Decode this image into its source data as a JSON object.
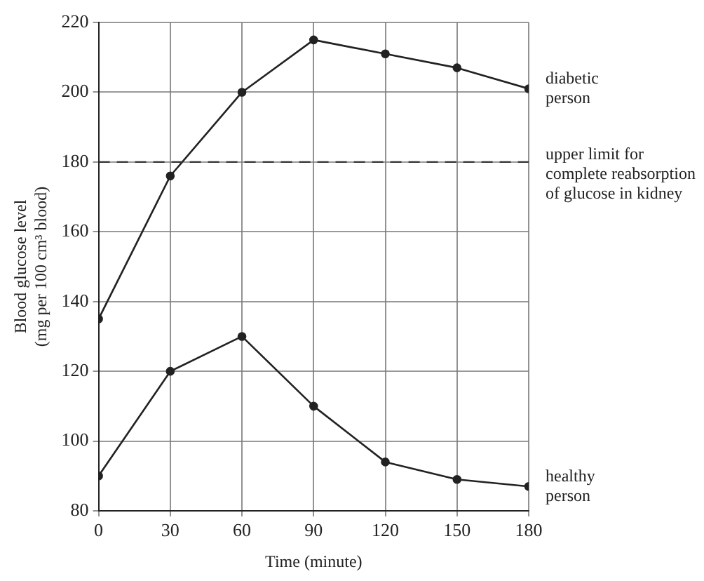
{
  "chart_data": {
    "type": "line",
    "xlabel": "Time (minute)",
    "ylabel": "Blood glucose level\n(mg per 100 cm³ blood)",
    "x": [
      0,
      30,
      60,
      90,
      120,
      150,
      180
    ],
    "series": [
      {
        "name": "diabetic person",
        "color": "#222222",
        "values": [
          135,
          176,
          200,
          215,
          211,
          207,
          201
        ]
      },
      {
        "name": "healthy person",
        "color": "#222222",
        "values": [
          90,
          120,
          130,
          110,
          94,
          89,
          87
        ]
      }
    ],
    "xlim": [
      0,
      180
    ],
    "xticks": [
      0,
      30,
      60,
      90,
      120,
      150,
      180
    ],
    "ylim": [
      80,
      220
    ],
    "yticks": [
      80,
      100,
      120,
      140,
      160,
      180,
      200,
      220
    ],
    "ref_lines": [
      {
        "axis": "y",
        "value": 180,
        "label": "upper limit for complete reabsorption of glucose in kidney",
        "color": "#333333",
        "line_style": "dashed"
      }
    ],
    "grid": true,
    "marker": "circle",
    "line_style": "solid",
    "legend": false
  }
}
